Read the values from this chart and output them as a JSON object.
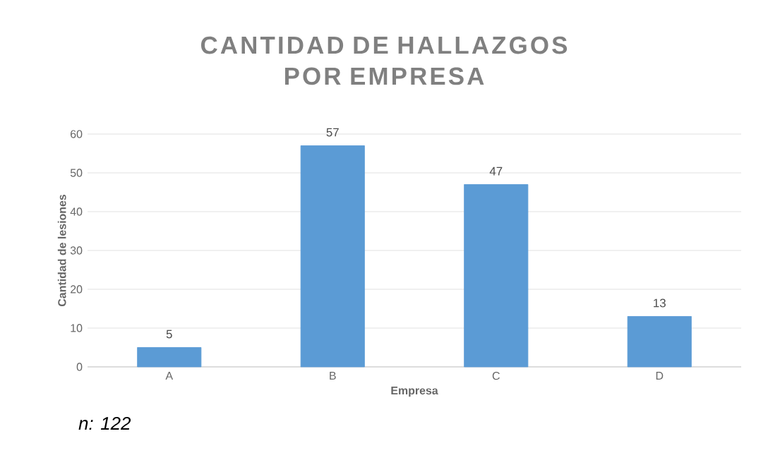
{
  "chart_data": {
    "type": "bar",
    "title": "CANTIDAD DE HALLAZGOS POR EMPRESA",
    "xlabel": "Empresa",
    "ylabel": "Cantidad de lesiones",
    "categories": [
      "A",
      "B",
      "C",
      "D"
    ],
    "values": [
      5,
      57,
      47,
      13
    ],
    "color": "#5b9bd5",
    "ylim": [
      0,
      60
    ],
    "yticks": [
      0,
      10,
      20,
      30,
      40,
      50,
      60
    ],
    "grid": "y",
    "data_labels": true,
    "annotations": [
      "n: 122"
    ]
  }
}
